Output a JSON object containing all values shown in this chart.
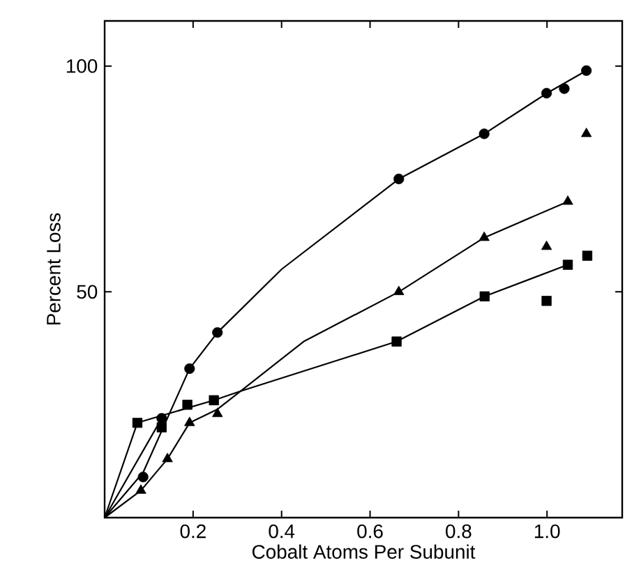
{
  "chart_data": {
    "type": "scatter",
    "xlabel": "Cobalt Atoms Per Subunit",
    "ylabel": "Percent Loss",
    "xlim": [
      0,
      1.17
    ],
    "ylim": [
      0,
      110
    ],
    "xticks": [
      0.2,
      0.4,
      0.6,
      0.8,
      {
        "value": 1,
        "label": "1.0"
      }
    ],
    "yticks": [
      50,
      100
    ],
    "series": [
      {
        "marker": "circle",
        "color": "#000000",
        "x": [
          0.087,
          0.129,
          0.192,
          0.255,
          0.665,
          0.858,
          0.999,
          1.039,
          1.089
        ],
        "values": [
          9,
          22,
          33,
          41,
          75,
          85,
          94,
          95,
          99
        ]
      },
      {
        "marker": "triangle",
        "color": "#000000",
        "x": [
          0.082,
          0.142,
          0.192,
          0.255,
          0.665,
          0.858,
          0.999,
          1.047,
          1.089
        ],
        "values": [
          6,
          13,
          21,
          23,
          50,
          62,
          60,
          70,
          85
        ]
      },
      {
        "marker": "square",
        "color": "#000000",
        "x": [
          0.074,
          0.129,
          0.187,
          0.247,
          0.66,
          0.859,
          0.999,
          1.047,
          1.091
        ],
        "values": [
          21,
          20,
          25,
          26,
          39,
          49,
          48,
          56,
          58
        ]
      },
      {
        "type": "line",
        "marker": "none",
        "color": "#000000",
        "x": [
          0,
          0.087,
          0.192,
          0.255,
          0.4,
          0.665,
          0.858,
          1.0,
          1.089
        ],
        "values": [
          0,
          10,
          33,
          41,
          55,
          75,
          85,
          94,
          99
        ]
      },
      {
        "type": "line",
        "marker": "none",
        "color": "#000000",
        "x": [
          0,
          0.082,
          0.142,
          0.192,
          0.255,
          0.307,
          0.45,
          0.665,
          0.858,
          1.047
        ],
        "values": [
          0,
          6,
          13,
          21,
          24,
          28,
          39,
          50,
          62,
          70
        ]
      },
      {
        "type": "line",
        "marker": "none",
        "color": "#000000",
        "x": [
          0,
          0.074,
          0.247,
          0.307,
          0.66,
          0.859,
          1.047
        ],
        "values": [
          0,
          21,
          26,
          28,
          39,
          49,
          56
        ]
      },
      {
        "type": "line",
        "marker": "none",
        "color": "#000000",
        "x": [
          0,
          0.129
        ],
        "values": [
          0,
          22
        ]
      }
    ]
  }
}
